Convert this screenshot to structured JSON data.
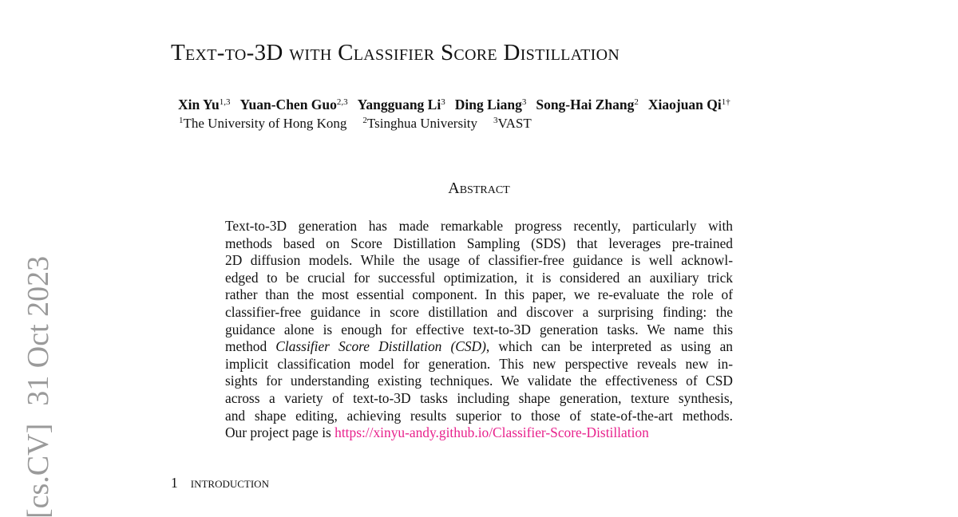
{
  "stamp": {
    "category": "[cs.CV]",
    "date": "31 Oct 2023"
  },
  "title": "Text-to-3D with Classifier Score Distillation",
  "authors": [
    {
      "name": "Xin Yu",
      "affil": "1,3"
    },
    {
      "name": "Yuan-Chen Guo",
      "affil": "2,3"
    },
    {
      "name": "Yangguang Li",
      "affil": "3"
    },
    {
      "name": "Ding Liang",
      "affil": "3"
    },
    {
      "name": "Song-Hai Zhang",
      "affil": "2"
    },
    {
      "name": "Xiaojuan Qi",
      "affil": "1†"
    }
  ],
  "affiliations": [
    {
      "mark": "1",
      "name": "The University of Hong Kong"
    },
    {
      "mark": "2",
      "name": "Tsinghua University"
    },
    {
      "mark": "3",
      "name": "VAST"
    }
  ],
  "abstract": {
    "heading": "Abstract",
    "lines": [
      [
        {
          "text": "Text-to-3D generation has made remarkable progress recently, particularly with"
        }
      ],
      [
        {
          "text": "methods based on Score Distillation Sampling (SDS) that leverages pre-trained"
        }
      ],
      [
        {
          "text": "2D diffusion models. While the usage of classifier-free guidance is well acknowl-"
        }
      ],
      [
        {
          "text": "edged to be crucial for successful optimization, it is considered an auxiliary trick"
        }
      ],
      [
        {
          "text": "rather than the most essential component. In this paper, we re-evaluate the role of"
        }
      ],
      [
        {
          "text": "classifier-free guidance in score distillation and discover a surprising finding: the"
        }
      ],
      [
        {
          "text": "guidance alone is enough for effective text-to-3D generation tasks. We name this"
        }
      ],
      [
        {
          "text": "method "
        },
        {
          "text": "Classifier Score Distillation (CSD)",
          "style": "italic"
        },
        {
          "text": ", which can be interpreted as using an"
        }
      ],
      [
        {
          "text": "implicit classification model for generation. This new perspective reveals new in-"
        }
      ],
      [
        {
          "text": "sights for understanding existing techniques. We validate the effectiveness of CSD"
        }
      ],
      [
        {
          "text": "across a variety of text-to-3D tasks including shape generation, texture synthesis,"
        }
      ],
      [
        {
          "text": "and shape editing, achieving results superior to those of state-of-the-art methods."
        }
      ],
      [
        {
          "text": "Our project page is "
        },
        {
          "text": "https://xinyu-andy.github.io/Classifier-Score-Distillation",
          "style": "link"
        }
      ]
    ]
  },
  "section": {
    "number": "1",
    "title": "Introduction"
  }
}
